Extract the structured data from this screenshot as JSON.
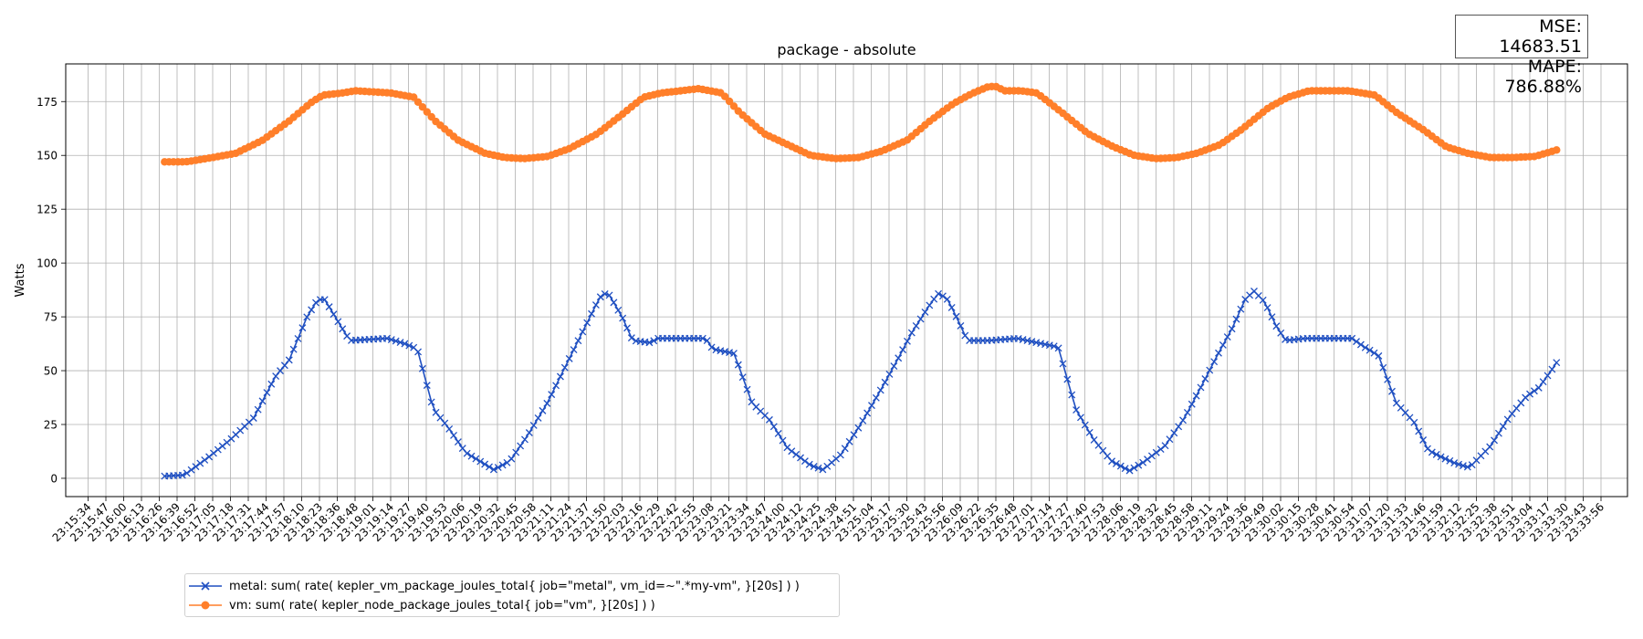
{
  "chart_data": {
    "type": "line",
    "title": "package - absolute",
    "ylabel": "Watts",
    "xlabel": "",
    "ylim": [
      -8.5,
      192.5
    ],
    "yticks": [
      0,
      25,
      50,
      75,
      100,
      125,
      150,
      175
    ],
    "grid": true,
    "legend_position": "bottom-left",
    "x_tick_labels": [
      "23:15:34",
      "23:15:47",
      "23:16:00",
      "23:16:13",
      "23:16:26",
      "23:16:39",
      "23:16:52",
      "23:17:05",
      "23:17:18",
      "23:17:31",
      "23:17:44",
      "23:17:57",
      "23:18:10",
      "23:18:23",
      "23:18:36",
      "23:18:48",
      "23:19:01",
      "23:19:14",
      "23:19:27",
      "23:19:40",
      "23:19:53",
      "23:20:06",
      "23:20:19",
      "23:20:32",
      "23:20:45",
      "23:20:58",
      "23:21:11",
      "23:21:24",
      "23:21:37",
      "23:21:50",
      "23:22:03",
      "23:22:16",
      "23:22:29",
      "23:22:42",
      "23:22:55",
      "23:23:08",
      "23:23:21",
      "23:23:34",
      "23:23:47",
      "23:24:00",
      "23:24:12",
      "23:24:25",
      "23:24:38",
      "23:24:51",
      "23:25:04",
      "23:25:17",
      "23:25:30",
      "23:25:43",
      "23:25:56",
      "23:26:09",
      "23:26:22",
      "23:26:35",
      "23:26:48",
      "23:27:01",
      "23:27:14",
      "23:27:27",
      "23:27:40",
      "23:27:53",
      "23:28:06",
      "23:28:19",
      "23:28:32",
      "23:28:45",
      "23:28:58",
      "23:29:11",
      "23:29:24",
      "23:29:36",
      "23:29:49",
      "23:30:02",
      "23:30:15",
      "23:30:28",
      "23:30:41",
      "23:30:54",
      "23:31:07",
      "23:31:20",
      "23:31:33",
      "23:31:46",
      "23:31:59",
      "23:32:12",
      "23:32:25",
      "23:32:38",
      "23:32:51",
      "23:33:04",
      "23:33:17",
      "23:33:30",
      "23:33:43",
      "23:33:56"
    ],
    "series": [
      {
        "name": "metal: sum( rate( kepler_vm_package_joules_total{ job=\"metal\", vm_id=~\".*my-vm\", }[20s] ) )",
        "color": "#1f4fc1",
        "marker": "x",
        "x_start": 4.3,
        "x_end": 82.5,
        "keyframes": [
          [
            4.3,
            1
          ],
          [
            5.4,
            1.5
          ],
          [
            6.8,
            10
          ],
          [
            8,
            18
          ],
          [
            9.3,
            28
          ],
          [
            10.5,
            47
          ],
          [
            11.3,
            55
          ],
          [
            12.3,
            75
          ],
          [
            12.9,
            83
          ],
          [
            13.3,
            83
          ],
          [
            14.1,
            72
          ],
          [
            14.7,
            64
          ],
          [
            16.8,
            65
          ],
          [
            17.8,
            62.5
          ],
          [
            18.5,
            60
          ],
          [
            19.4,
            32
          ],
          [
            20.2,
            24
          ],
          [
            21.2,
            12
          ],
          [
            22.3,
            6.5
          ],
          [
            22.8,
            4
          ],
          [
            23.7,
            8
          ],
          [
            24.7,
            20
          ],
          [
            25.8,
            35
          ],
          [
            26.7,
            50
          ],
          [
            27.6,
            65
          ],
          [
            28.5,
            80
          ],
          [
            28.9,
            86
          ],
          [
            29.3,
            85
          ],
          [
            30,
            75
          ],
          [
            30.6,
            64
          ],
          [
            31.6,
            63
          ],
          [
            32,
            65
          ],
          [
            33.3,
            65
          ],
          [
            34.7,
            65
          ],
          [
            35.1,
            60
          ],
          [
            36.3,
            58
          ],
          [
            37.3,
            35
          ],
          [
            38.3,
            27
          ],
          [
            39.3,
            14
          ],
          [
            40.6,
            6
          ],
          [
            41.3,
            4
          ],
          [
            42.3,
            11
          ],
          [
            43.4,
            25
          ],
          [
            44.6,
            42
          ],
          [
            45.6,
            57
          ],
          [
            46.3,
            68
          ],
          [
            47.4,
            82
          ],
          [
            47.8,
            86
          ],
          [
            48.3,
            83
          ],
          [
            48.9,
            73
          ],
          [
            49.4,
            64
          ],
          [
            50.6,
            64
          ],
          [
            52.2,
            65
          ],
          [
            53.6,
            62.5
          ],
          [
            54.5,
            61
          ],
          [
            55.5,
            32
          ],
          [
            56.5,
            18
          ],
          [
            57.5,
            8
          ],
          [
            58.5,
            3.5
          ],
          [
            59.3,
            7.5
          ],
          [
            60.5,
            15
          ],
          [
            61.6,
            28
          ],
          [
            62.5,
            42
          ],
          [
            63.5,
            58
          ],
          [
            64.3,
            70
          ],
          [
            65,
            83
          ],
          [
            65.5,
            87
          ],
          [
            66.1,
            82
          ],
          [
            66.8,
            70
          ],
          [
            67.3,
            64
          ],
          [
            68.4,
            65
          ],
          [
            69.6,
            65
          ],
          [
            71,
            65
          ],
          [
            71.7,
            61
          ],
          [
            72.5,
            57
          ],
          [
            73.5,
            35
          ],
          [
            74.5,
            26
          ],
          [
            75.3,
            13
          ],
          [
            76,
            10
          ],
          [
            76.8,
            7
          ],
          [
            77.6,
            5
          ],
          [
            78.8,
            15
          ],
          [
            79.8,
            28
          ],
          [
            80.8,
            38
          ],
          [
            81.5,
            42
          ],
          [
            82.2,
            50
          ],
          [
            83,
            60
          ],
          [
            83.8,
            72
          ],
          [
            84.5,
            86
          ],
          [
            85.2,
            84
          ],
          [
            85.8,
            70
          ],
          [
            86.4,
            65
          ],
          [
            88,
            65
          ],
          [
            89.4,
            65
          ],
          [
            90.6,
            60
          ],
          [
            91.6,
            57
          ],
          [
            92.4,
            45
          ],
          [
            93.1,
            31
          ],
          [
            94,
            27
          ],
          [
            95,
            20
          ],
          [
            96,
            14
          ],
          [
            96.7,
            10
          ]
        ]
      },
      {
        "name": "vm: sum( rate( kepler_node_package_joules_total{ job=\"vm\", }[20s] ) )",
        "color": "#ff7f2a",
        "marker": "o",
        "x_start": 4.3,
        "x_end": 82.5,
        "keyframes": [
          [
            4.3,
            147
          ],
          [
            5.5,
            147
          ],
          [
            7,
            149
          ],
          [
            8.3,
            151
          ],
          [
            9.8,
            157
          ],
          [
            11.3,
            166
          ],
          [
            12.6,
            175
          ],
          [
            13.2,
            178
          ],
          [
            14.3,
            179
          ],
          [
            15,
            180
          ],
          [
            17,
            179
          ],
          [
            18.3,
            177
          ],
          [
            19.5,
            166
          ],
          [
            20.8,
            157
          ],
          [
            22.3,
            151
          ],
          [
            23.4,
            149
          ],
          [
            24.5,
            148.5
          ],
          [
            25.8,
            149.5
          ],
          [
            27,
            153
          ],
          [
            28.6,
            160
          ],
          [
            30,
            169
          ],
          [
            31.2,
            177
          ],
          [
            32.2,
            179
          ],
          [
            33.3,
            180
          ],
          [
            34.3,
            181
          ],
          [
            35.6,
            179
          ],
          [
            36.6,
            170
          ],
          [
            38,
            160
          ],
          [
            39.3,
            155
          ],
          [
            40.6,
            150
          ],
          [
            42,
            148.5
          ],
          [
            43.3,
            149
          ],
          [
            44.6,
            152
          ],
          [
            46,
            157
          ],
          [
            47.3,
            166
          ],
          [
            48.6,
            174
          ],
          [
            49.6,
            178.5
          ],
          [
            50.6,
            182
          ],
          [
            51,
            182
          ],
          [
            51.5,
            180
          ],
          [
            52.4,
            180
          ],
          [
            53.3,
            179
          ],
          [
            54.7,
            170
          ],
          [
            56.2,
            160
          ],
          [
            57.6,
            154
          ],
          [
            58.8,
            150
          ],
          [
            60,
            148.5
          ],
          [
            61.2,
            149
          ],
          [
            62.3,
            151
          ],
          [
            63.6,
            155
          ],
          [
            64.8,
            162
          ],
          [
            66.3,
            172
          ],
          [
            67.4,
            177
          ],
          [
            68.6,
            180
          ],
          [
            69.8,
            180
          ],
          [
            70.8,
            180
          ],
          [
            72.3,
            178
          ],
          [
            73.5,
            170
          ],
          [
            75,
            162
          ],
          [
            76.3,
            154
          ],
          [
            77.5,
            151
          ],
          [
            78.8,
            149
          ],
          [
            80,
            149
          ],
          [
            81.3,
            149.5
          ],
          [
            82.7,
            153
          ],
          [
            84,
            160
          ],
          [
            85.4,
            170
          ],
          [
            86.4,
            177
          ],
          [
            87.6,
            180
          ],
          [
            88.6,
            183
          ],
          [
            89.8,
            182
          ],
          [
            90.6,
            180
          ],
          [
            92,
            176
          ],
          [
            93.4,
            168
          ],
          [
            94.8,
            158
          ],
          [
            96,
            152
          ],
          [
            96.7,
            149
          ]
        ]
      }
    ]
  },
  "stats": {
    "mse": "MSE: 14683.51",
    "mape": "MAPE: 786.88%"
  },
  "legend": {
    "metal_label": "metal: sum( rate( kepler_vm_package_joules_total{ job=\"metal\", vm_id=~\".*my-vm\", }[20s] ) )",
    "vm_label": "vm: sum( rate( kepler_node_package_joules_total{ job=\"vm\", }[20s] ) )"
  }
}
